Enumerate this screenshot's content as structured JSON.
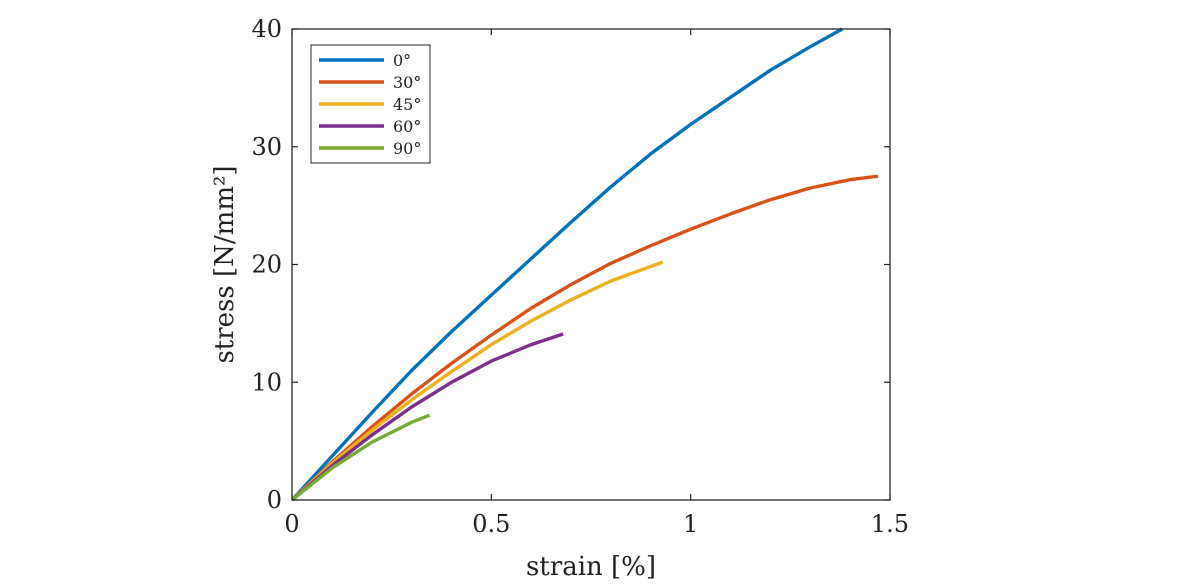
{
  "chart_data": {
    "type": "line",
    "title": "",
    "xlabel": "strain [%]",
    "ylabel": "stress [N/mm²]",
    "xlim": [
      0,
      1.5
    ],
    "ylim": [
      0,
      40
    ],
    "xticks": [
      0,
      0.5,
      1,
      1.5
    ],
    "xtick_labels": [
      "0",
      "0.5",
      "1",
      "1.5"
    ],
    "yticks": [
      0,
      10,
      20,
      30,
      40
    ],
    "ytick_labels": [
      "0",
      "10",
      "20",
      "30",
      "40"
    ],
    "grid": false,
    "legend_position": "top-left",
    "series": [
      {
        "name": "0°",
        "color": "#0072BD",
        "x": [
          0,
          0.1,
          0.2,
          0.3,
          0.4,
          0.5,
          0.6,
          0.7,
          0.8,
          0.9,
          1.0,
          1.1,
          1.2,
          1.3,
          1.38
        ],
        "y": [
          0,
          3.7,
          7.4,
          11.0,
          14.3,
          17.4,
          20.5,
          23.6,
          26.6,
          29.4,
          31.9,
          34.2,
          36.5,
          38.5,
          40.0
        ]
      },
      {
        "name": "30°",
        "color": "#D95319",
        "x": [
          0,
          0.1,
          0.2,
          0.3,
          0.4,
          0.5,
          0.6,
          0.7,
          0.8,
          0.9,
          1.0,
          1.1,
          1.2,
          1.3,
          1.4,
          1.47
        ],
        "y": [
          0,
          3.2,
          6.2,
          9.0,
          11.6,
          14.0,
          16.3,
          18.3,
          20.1,
          21.6,
          23.0,
          24.3,
          25.5,
          26.5,
          27.2,
          27.5
        ]
      },
      {
        "name": "45°",
        "color": "#EDB120",
        "x": [
          0,
          0.1,
          0.2,
          0.3,
          0.4,
          0.5,
          0.6,
          0.7,
          0.8,
          0.93
        ],
        "y": [
          0,
          3.1,
          5.9,
          8.5,
          10.9,
          13.2,
          15.2,
          17.0,
          18.6,
          20.2
        ]
      },
      {
        "name": "60°",
        "color": "#7E2F8E",
        "x": [
          0,
          0.1,
          0.2,
          0.3,
          0.4,
          0.5,
          0.6,
          0.68
        ],
        "y": [
          0,
          2.9,
          5.5,
          7.9,
          10.0,
          11.8,
          13.2,
          14.1
        ]
      },
      {
        "name": "90°",
        "color": "#77AC30",
        "x": [
          0,
          0.1,
          0.2,
          0.3,
          0.345
        ],
        "y": [
          0,
          2.7,
          4.9,
          6.6,
          7.2
        ]
      }
    ]
  }
}
